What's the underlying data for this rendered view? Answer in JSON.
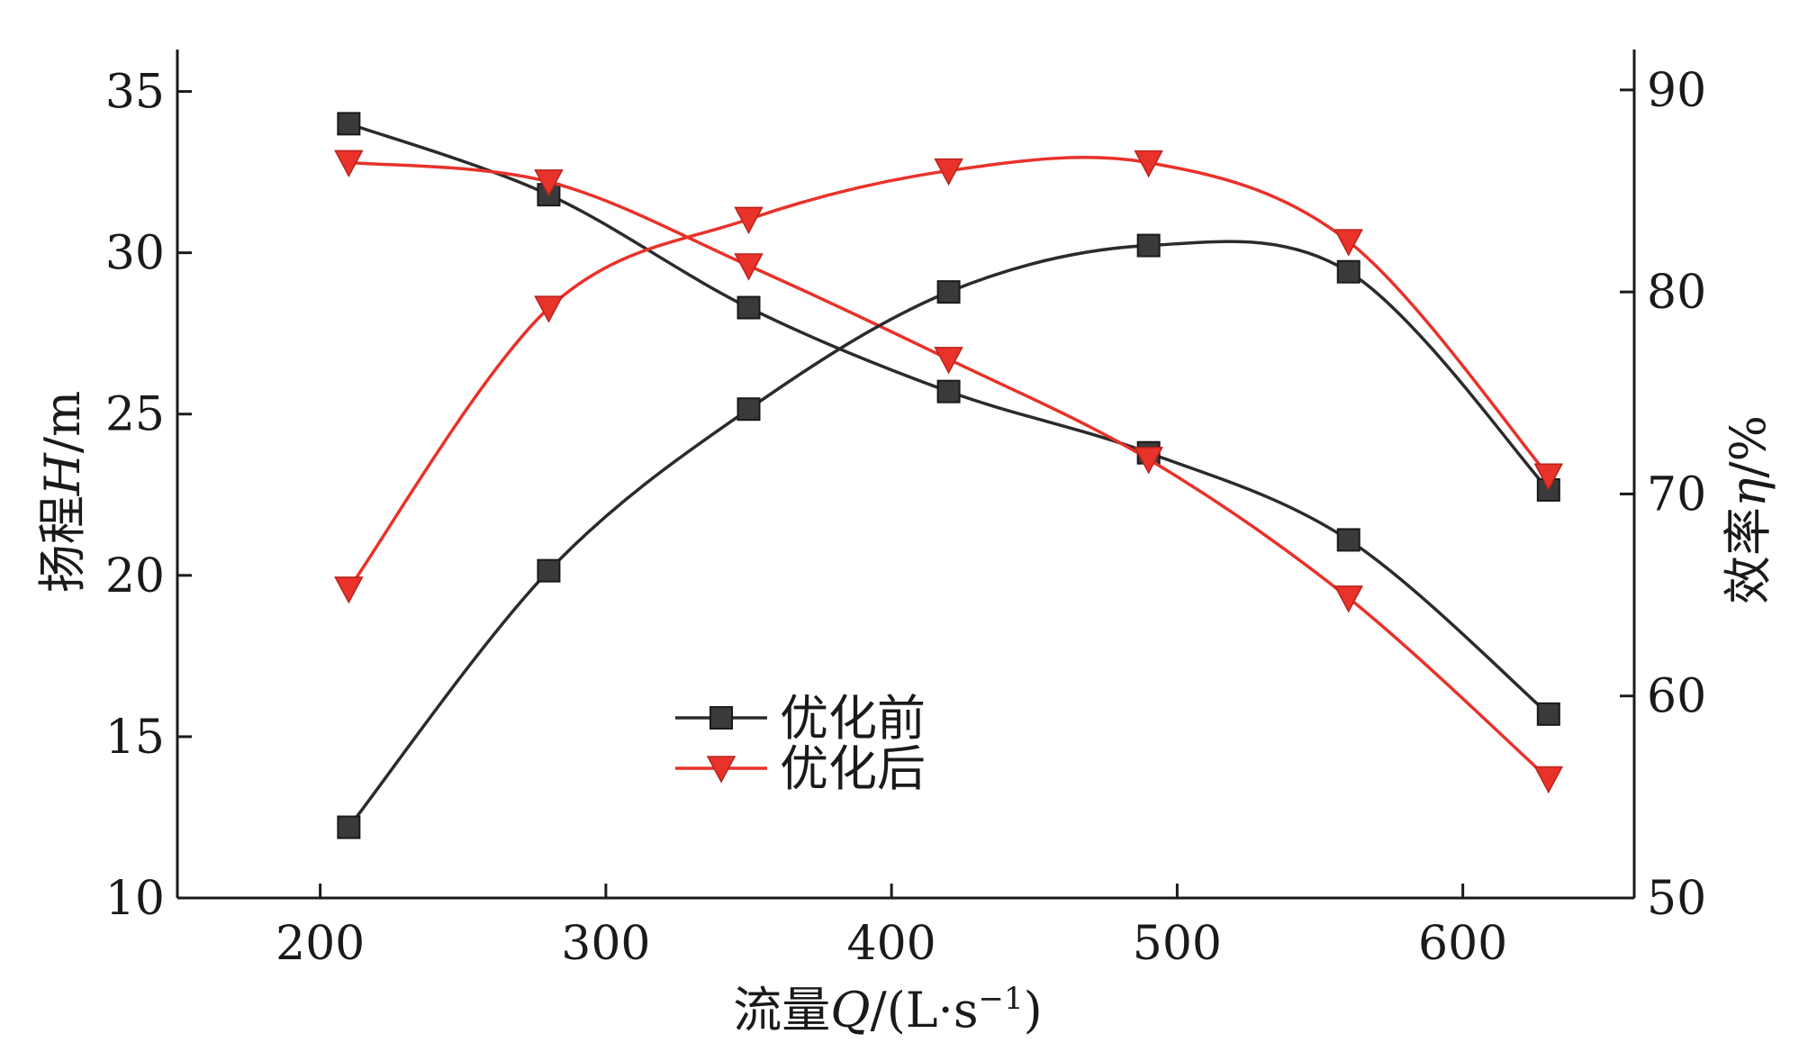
{
  "chart_data": {
    "type": "line",
    "x_values": [
      210,
      280,
      350,
      420,
      490,
      560,
      630
    ],
    "xlim": [
      150,
      660
    ],
    "xticks": [
      200,
      300,
      400,
      500,
      600
    ],
    "xlabel": {
      "prefix": "流量",
      "var": "Q",
      "suffix": "/(L·s",
      "sup": "−1",
      "close": ")"
    },
    "left_axis": {
      "ylim": [
        10,
        36.3
      ],
      "ticks": [
        10,
        15,
        20,
        25,
        30,
        35
      ],
      "label": {
        "prefix": "扬程",
        "var": "H",
        "suffix": "/m"
      }
    },
    "right_axis": {
      "ylim": [
        50,
        92
      ],
      "ticks": [
        50,
        60,
        70,
        80,
        90
      ],
      "label": {
        "prefix": "效率",
        "var": "η",
        "suffix": "/%"
      }
    },
    "series": [
      {
        "name": "优化前",
        "quantity": "head",
        "axis": "left",
        "color": "#2b2b2b",
        "marker": "square",
        "values": [
          34.0,
          31.8,
          28.3,
          25.7,
          23.8,
          21.1,
          15.7
        ]
      },
      {
        "name": "优化后",
        "quantity": "head",
        "axis": "left",
        "color": "#e8322a",
        "marker": "triangle-down",
        "values": [
          32.8,
          32.2,
          29.6,
          26.7,
          23.6,
          19.3,
          13.7
        ]
      },
      {
        "name": "优化前",
        "quantity": "efficiency",
        "axis": "right",
        "color": "#2b2b2b",
        "marker": "square",
        "values": [
          53.5,
          66.2,
          74.2,
          80.0,
          82.3,
          81.0,
          70.2
        ]
      },
      {
        "name": "优化后",
        "quantity": "efficiency",
        "axis": "right",
        "color": "#e8322a",
        "marker": "triangle-down",
        "values": [
          65.3,
          79.2,
          83.6,
          86.0,
          86.4,
          82.5,
          70.9
        ]
      }
    ],
    "legend": [
      {
        "label": "优化前",
        "color": "#2b2b2b",
        "marker": "square"
      },
      {
        "label": "优化后",
        "color": "#e8322a",
        "marker": "triangle-down"
      }
    ]
  }
}
